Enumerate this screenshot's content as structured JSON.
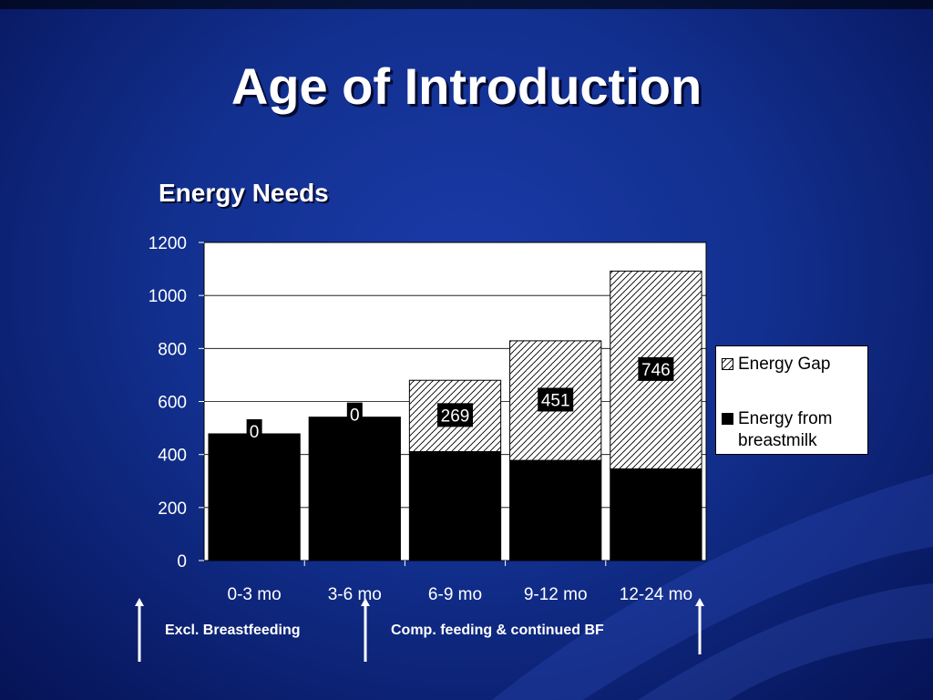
{
  "slide": {
    "title": "Age of Introduction"
  },
  "chart_data": {
    "type": "bar",
    "stacked": true,
    "title": "Energy Needs",
    "xlabel": "",
    "ylabel": "",
    "ylim": [
      0,
      1200
    ],
    "yticks": [
      0,
      200,
      400,
      600,
      800,
      1000,
      1200
    ],
    "categories": [
      "0-3 mo",
      "3-6 mo",
      "6-9 mo",
      "9-12 mo",
      "12-24 mo"
    ],
    "series": [
      {
        "name": "Energy from breastmilk",
        "values": [
          478,
          541,
          411,
          378,
          346
        ],
        "color": "#000000"
      },
      {
        "name": "Energy Gap",
        "values": [
          0,
          0,
          269,
          451,
          746
        ],
        "pattern": "diagonal-hatch"
      }
    ],
    "data_labels": [
      "0",
      "0",
      "269",
      "451",
      "746"
    ],
    "grid": true,
    "legend_position": "right"
  },
  "legend": {
    "gap_label": "Energy Gap",
    "breastmilk_label_line1": "Energy from",
    "breastmilk_label_line2": "breastmilk"
  },
  "annotations": {
    "excl_label": "Excl. Breastfeeding",
    "comp_label": "Comp. feeding & continued BF"
  },
  "colors": {
    "background": "#12308f",
    "text": "#ffffff",
    "bar_fill": "#000000",
    "plot_bg": "#ffffff"
  }
}
